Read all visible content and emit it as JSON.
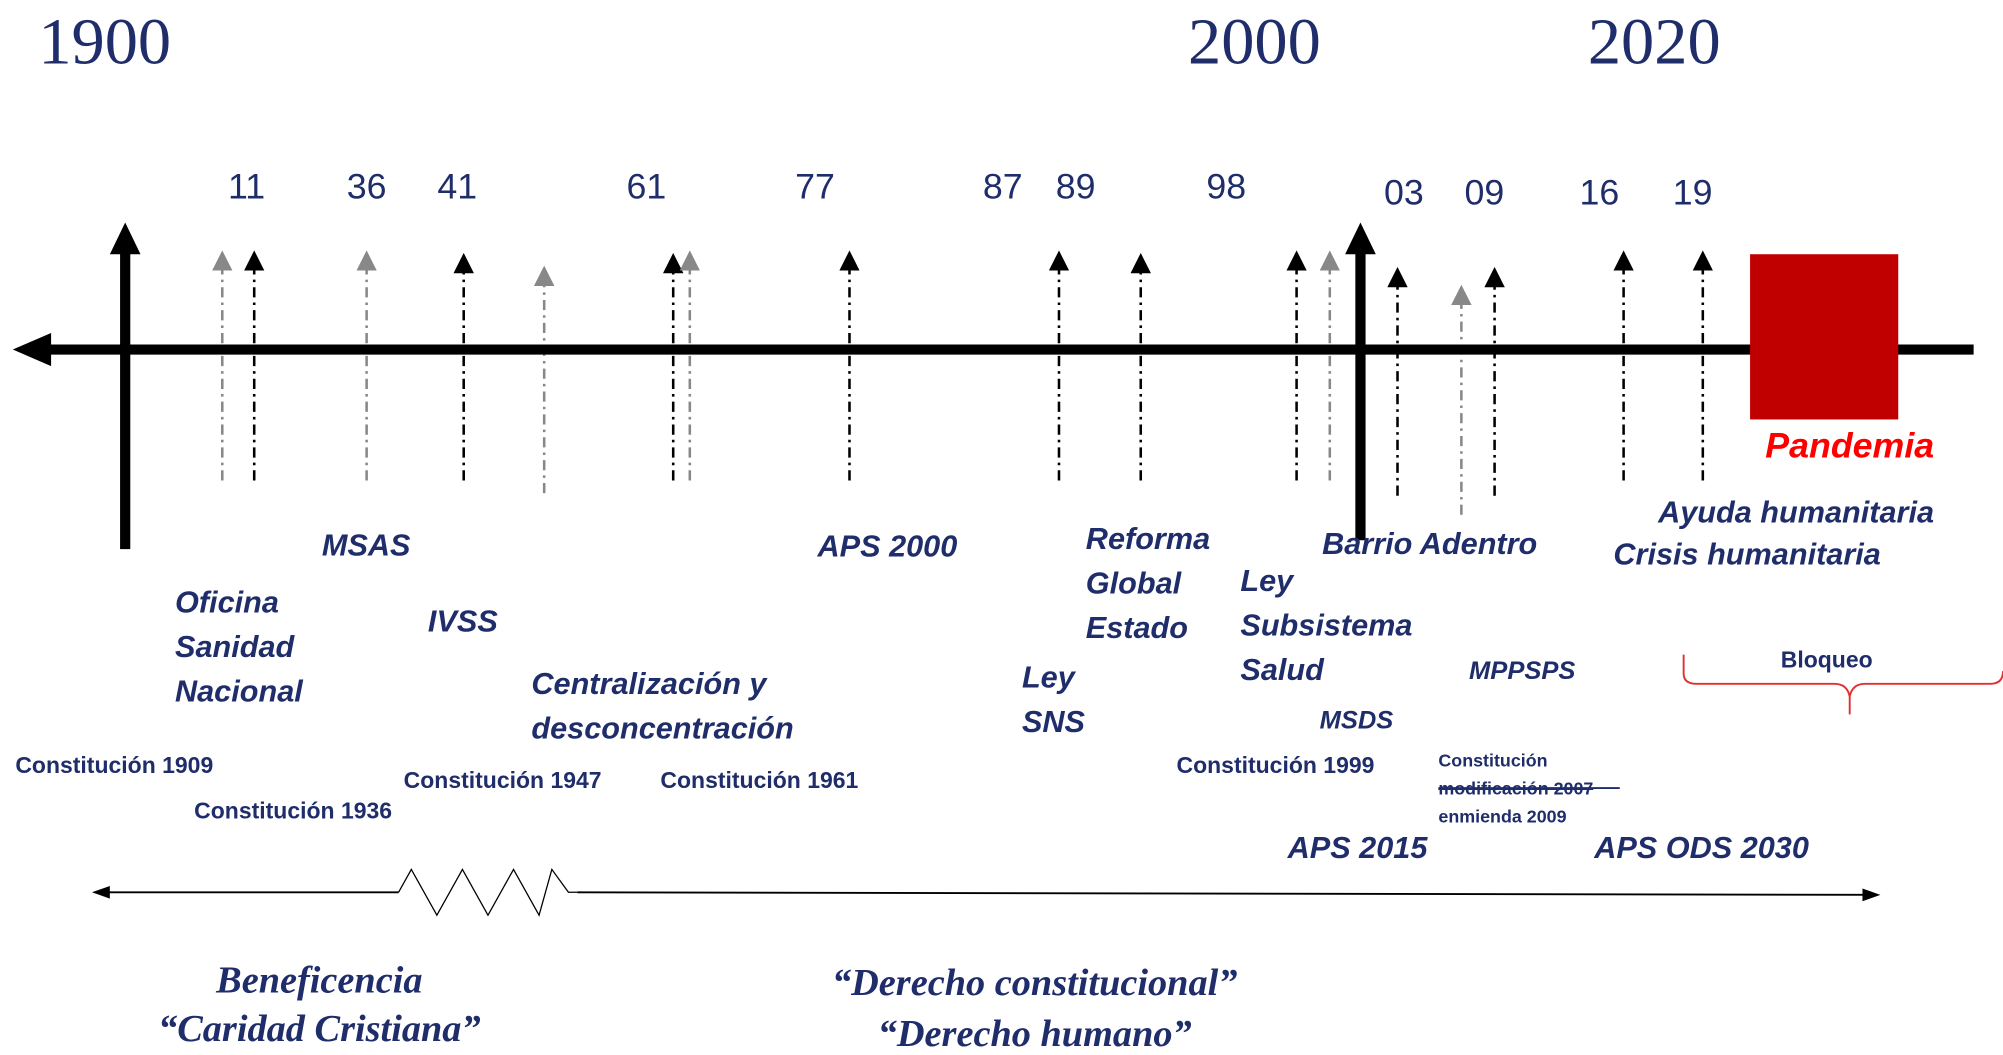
{
  "eras": [
    "1900",
    "2000",
    "2020"
  ],
  "years": [
    "11",
    "36",
    "41",
    "61",
    "77",
    "87",
    "89",
    "98",
    "03",
    "09",
    "16",
    "19"
  ],
  "pandemia": "Pandemia",
  "events": {
    "msas": "MSAS",
    "oficina": [
      "Oficina",
      "Sanidad",
      "Nacional"
    ],
    "ivss": "IVSS",
    "centralizacion": [
      "Centralización y",
      "desconcentración"
    ],
    "aps2000": "APS 2000",
    "reforma": [
      "Reforma",
      "Global",
      "Estado"
    ],
    "ley_sns": [
      "Ley",
      "SNS"
    ],
    "ley_subsistema": [
      "Ley",
      "Subsistema",
      "Salud"
    ],
    "barrio": "Barrio Adentro",
    "mppsps": "MPPSPS",
    "msds": "MSDS",
    "ayuda": "Ayuda humanitaria",
    "crisis": "Crisis humanitaria",
    "aps2015": "APS 2015",
    "aps_ods": "APS ODS 2030",
    "bloqueo": "Bloqueo"
  },
  "constitutions": [
    "Constitución 1909",
    "Constitución 1936",
    "Constitución 1947",
    "Constitución 1961",
    "Constitución 1999"
  ],
  "constitution_note": [
    "Constitución",
    "modificación 2007",
    "enmienda 2009"
  ],
  "periods": {
    "left": [
      "Beneficencia",
      "“Caridad Cristiana”"
    ],
    "right": [
      "“Derecho constitucional”",
      "“Derecho humano”"
    ]
  }
}
